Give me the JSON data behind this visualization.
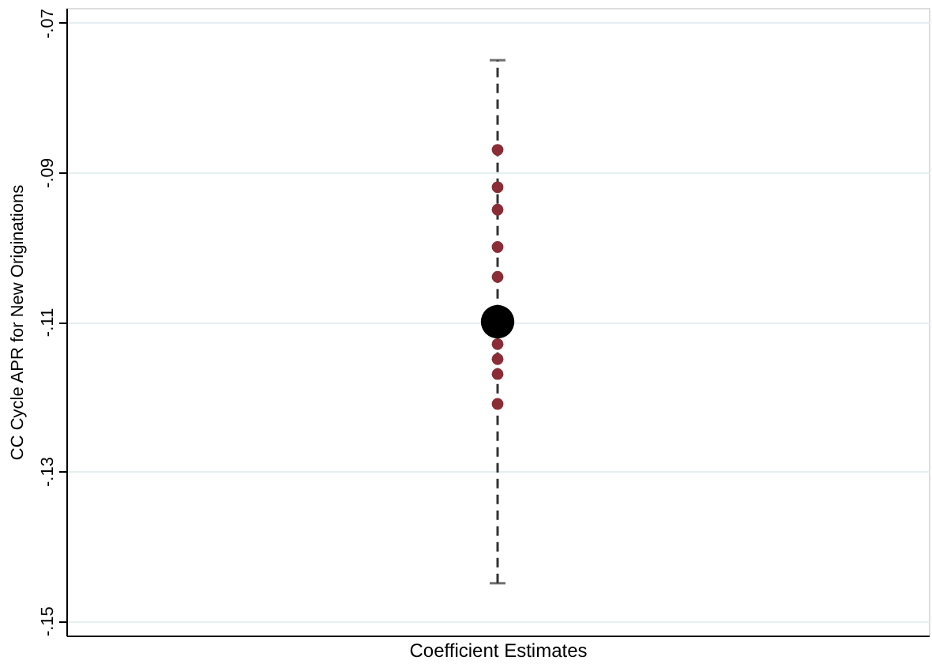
{
  "chart_data": {
    "type": "scatter",
    "xlabel": "Coefficient Estimates",
    "ylabel": "CC Cycle APR for New Originations",
    "categories": [
      null
    ],
    "ylim": [
      -0.152,
      -0.068
    ],
    "yticks": [
      {
        "value": -0.15,
        "label": "-.15"
      },
      {
        "value": -0.13,
        "label": "-.13"
      },
      {
        "value": -0.11,
        "label": "-.11"
      },
      {
        "value": -0.09,
        "label": "-.09"
      },
      {
        "value": -0.07,
        "label": "-.07"
      }
    ],
    "grid": "y",
    "tick_labels": "y",
    "marker": "circle",
    "series": [
      {
        "color": "#8b2d36",
        "x": [
          null,
          null,
          null,
          null,
          null,
          null,
          null,
          null,
          null
        ],
        "values": [
          -0.087,
          -0.092,
          -0.095,
          -0.1,
          -0.104,
          -0.113,
          -0.115,
          -0.117,
          -0.121
        ]
      },
      {
        "color": "#000000",
        "values": [
          -0.11
        ],
        "errors": [
          [
            -0.145,
            -0.075
          ]
        ],
        "line_style": "dashed"
      }
    ]
  }
}
